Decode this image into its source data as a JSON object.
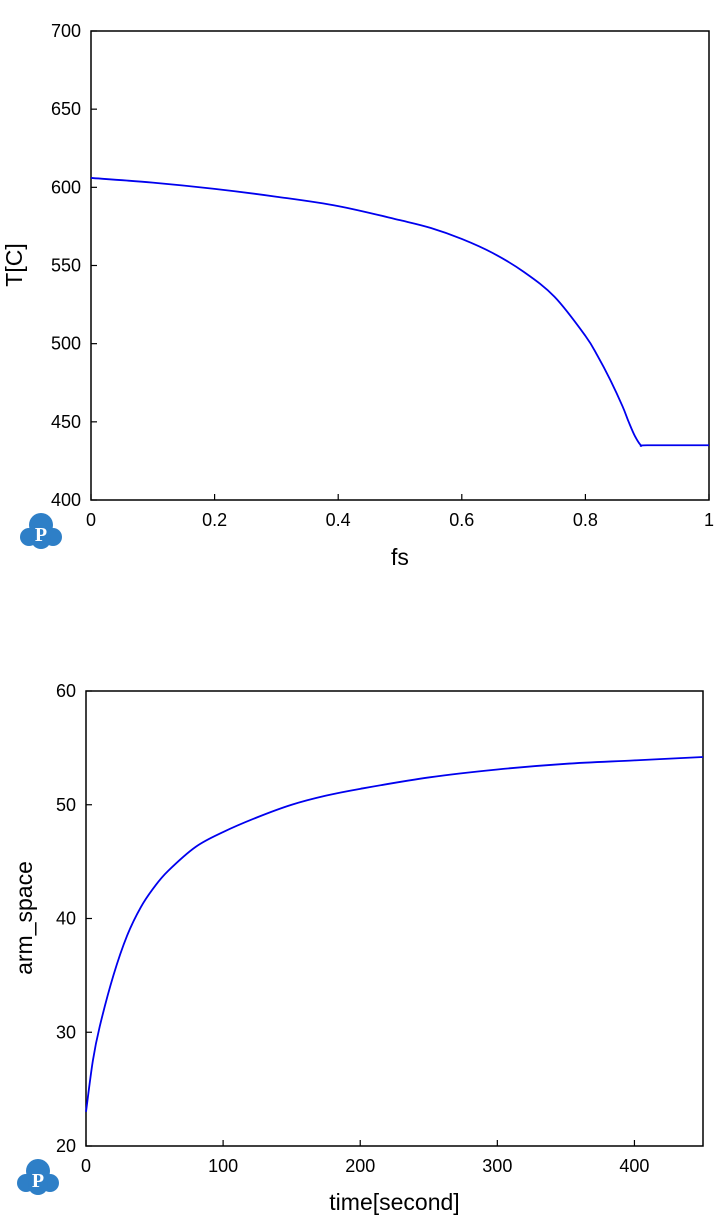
{
  "colors": {
    "line": "#0000ee",
    "axis": "#000000",
    "logo": "#2e7fc7"
  },
  "logo": {
    "letter": "P",
    "icon": "cloud-p-logo"
  },
  "chart_data": [
    {
      "type": "line",
      "title": "",
      "xlabel": "fs",
      "ylabel": "T[C]",
      "xlim": [
        0,
        1
      ],
      "ylim": [
        400,
        700
      ],
      "xticks": [
        0,
        0.2,
        0.4,
        0.6,
        0.8,
        1
      ],
      "xtick_labels": [
        "0",
        "0.2",
        "0.4",
        "0.6",
        "0.8",
        "1"
      ],
      "yticks": [
        400,
        450,
        500,
        550,
        600,
        650,
        700
      ],
      "ytick_labels": [
        "400",
        "450",
        "500",
        "550",
        "600",
        "650",
        "700"
      ],
      "grid": false,
      "series": [
        {
          "x": [
            0,
            0.1,
            0.2,
            0.3,
            0.4,
            0.5,
            0.55,
            0.6,
            0.65,
            0.7,
            0.75,
            0.8,
            0.82,
            0.84,
            0.86,
            0.87,
            0.88,
            0.89,
            0.9,
            1.0
          ],
          "y": [
            606,
            603,
            599,
            594,
            588,
            579,
            574,
            567,
            558,
            546,
            530,
            505,
            492,
            477,
            460,
            450,
            441,
            435,
            435,
            435
          ]
        }
      ]
    },
    {
      "type": "line",
      "title": "",
      "xlabel": "time[second]",
      "ylabel": "arm_space",
      "xlim": [
        0,
        450
      ],
      "ylim": [
        20,
        60
      ],
      "xticks": [
        0,
        100,
        200,
        300,
        400
      ],
      "xtick_labels": [
        "0",
        "100",
        "200",
        "300",
        "400"
      ],
      "yticks": [
        20,
        30,
        40,
        50,
        60
      ],
      "ytick_labels": [
        "20",
        "30",
        "40",
        "50",
        "60"
      ],
      "grid": false,
      "series": [
        {
          "x": [
            0,
            5,
            10,
            20,
            30,
            40,
            50,
            60,
            80,
            100,
            125,
            150,
            175,
            200,
            250,
            300,
            350,
            400,
            450
          ],
          "y": [
            23,
            27.5,
            30.5,
            35,
            38.5,
            41,
            42.8,
            44.2,
            46.3,
            47.6,
            48.9,
            50,
            50.8,
            51.4,
            52.4,
            53.1,
            53.6,
            53.9,
            54.2
          ]
        }
      ]
    }
  ]
}
